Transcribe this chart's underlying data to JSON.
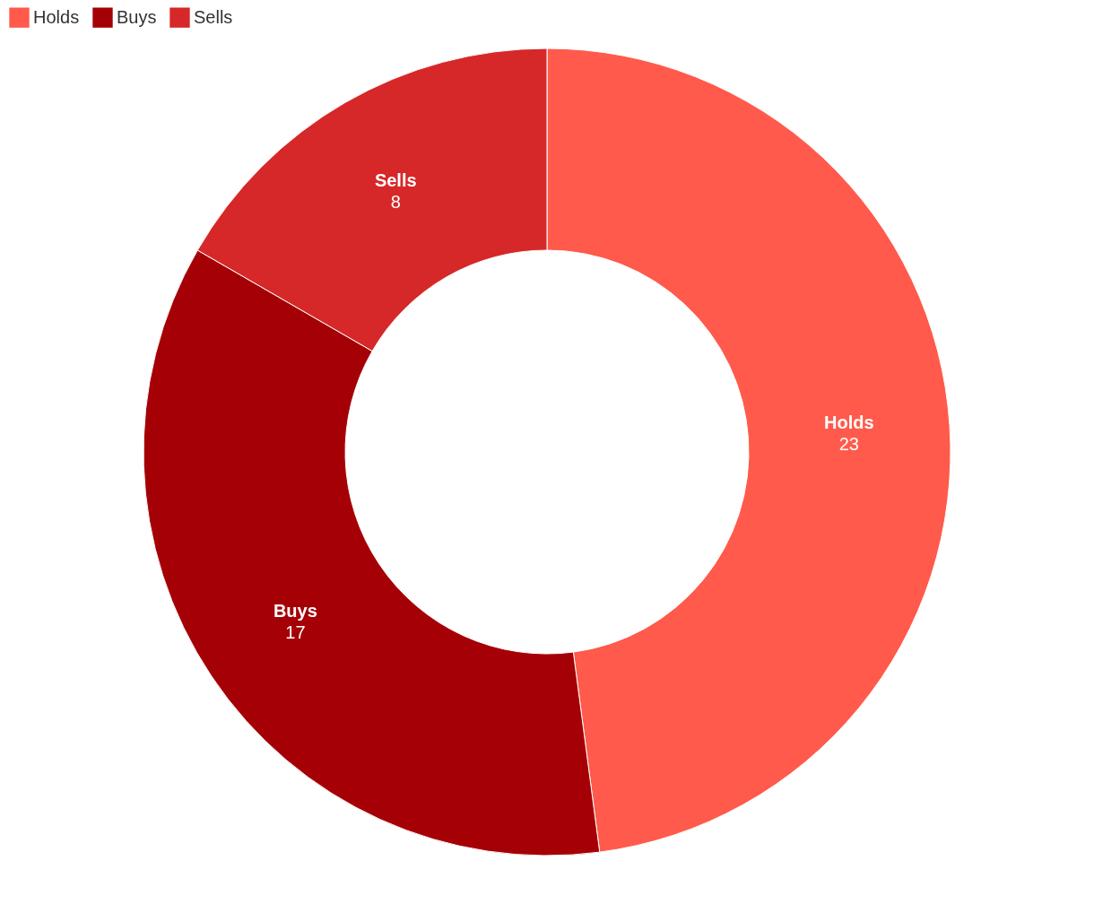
{
  "chart_data": {
    "type": "donut",
    "categories": [
      "Holds",
      "Buys",
      "Sells"
    ],
    "values": [
      23,
      17,
      8
    ],
    "colors": [
      "#ff5a4b",
      "#a50006",
      "#d62828"
    ],
    "data_labels": true,
    "legend": "top left"
  }
}
